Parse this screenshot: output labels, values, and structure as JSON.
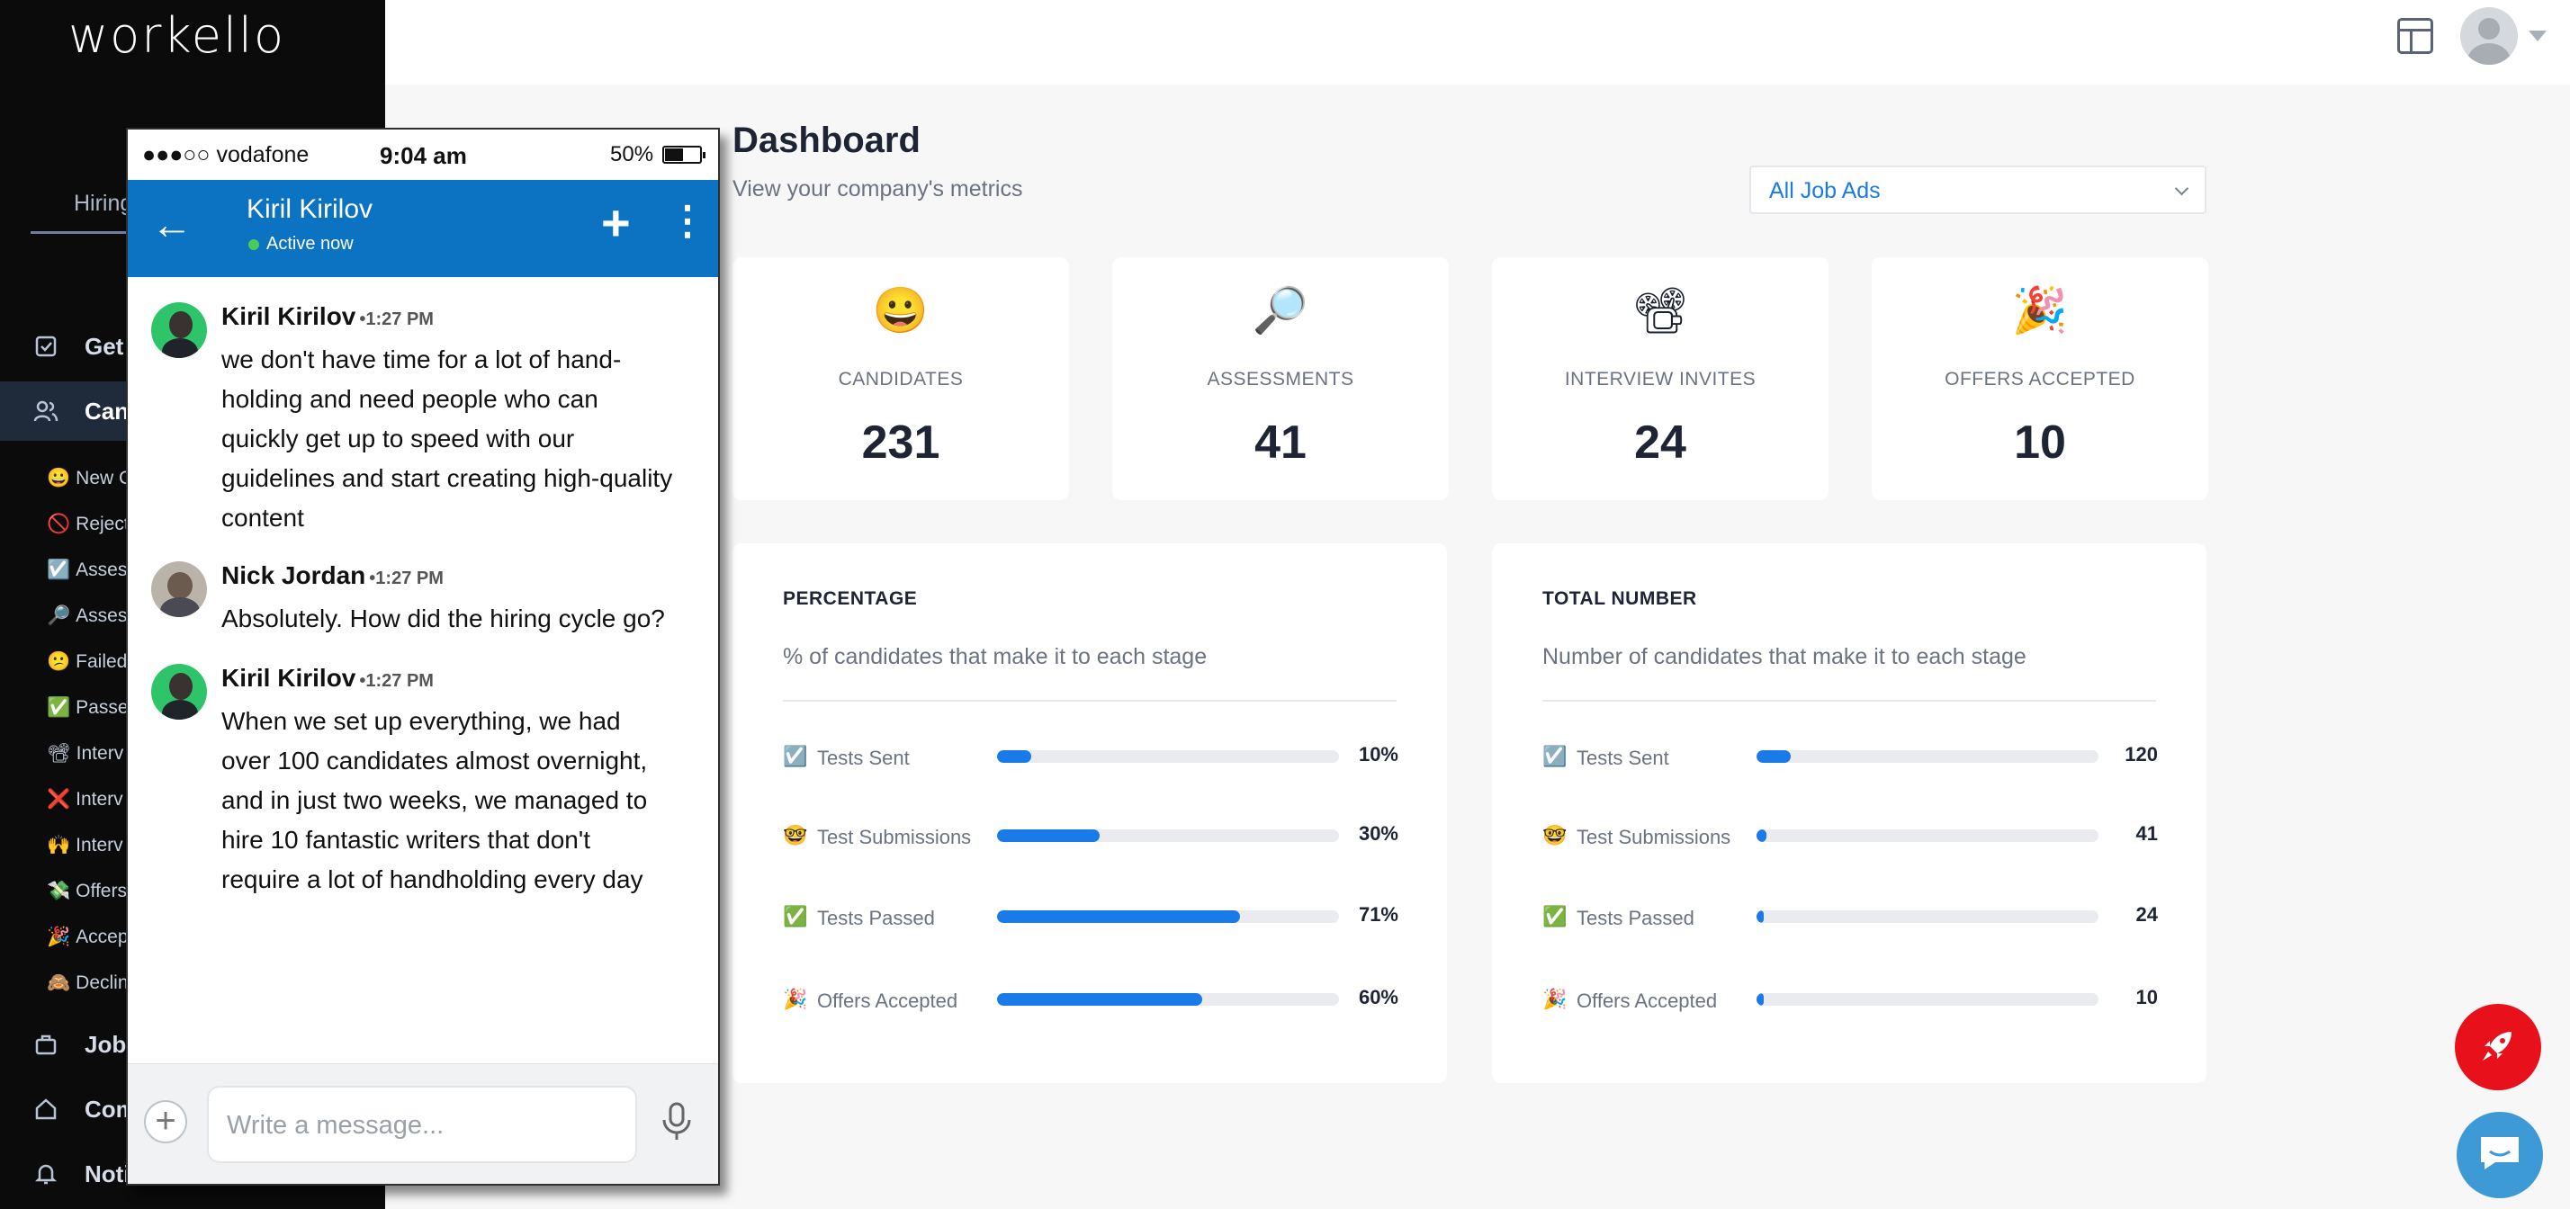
{
  "brand": {
    "logo": "workello"
  },
  "sidebar": {
    "tab_label": "Hiring",
    "items": [
      {
        "label": "Get",
        "icon": "checkbox-icon"
      },
      {
        "label": "Can",
        "icon": "users-icon"
      }
    ],
    "sub_items": [
      {
        "emoji": "😀",
        "label": "New C"
      },
      {
        "emoji": "🚫",
        "label": "Reject"
      },
      {
        "emoji": "☑️",
        "label": "Asses"
      },
      {
        "emoji": "🔎",
        "label": "Asses"
      },
      {
        "emoji": "😕",
        "label": "Failed"
      },
      {
        "emoji": "✅",
        "label": "Passe"
      },
      {
        "emoji": "📽",
        "label": "Interv"
      },
      {
        "emoji": "❌",
        "label": "Interv"
      },
      {
        "emoji": "🙌",
        "label": "Interv"
      },
      {
        "emoji": "💸",
        "label": "Offers"
      },
      {
        "emoji": "🎉",
        "label": "Accep"
      },
      {
        "emoji": "🙈",
        "label": "Declin"
      }
    ],
    "bottom_items": [
      {
        "label": "Job",
        "icon": "briefcase-icon"
      },
      {
        "label": "Com",
        "icon": "home-icon"
      },
      {
        "label": "Noti",
        "icon": "bell-icon"
      }
    ]
  },
  "dashboard": {
    "title": "Dashboard",
    "subtitle": "View your company's metrics",
    "filter": {
      "selected": "All Job Ads"
    },
    "stats": [
      {
        "emoji": "😀",
        "label": "CANDIDATES",
        "value": "231"
      },
      {
        "emoji": "🔎",
        "label": "ASSESSMENTS",
        "value": "41"
      },
      {
        "emoji": "📽",
        "label": "INTERVIEW INVITES",
        "value": "24"
      },
      {
        "emoji": "🎉",
        "label": "OFFERS ACCEPTED",
        "value": "10"
      }
    ],
    "percentage": {
      "title": "PERCENTAGE",
      "description": "% of candidates that make it to each stage",
      "rows": [
        {
          "emoji": "☑️",
          "label": "Tests Sent",
          "value": "10%",
          "fill": 0.1
        },
        {
          "emoji": "🤓",
          "label": "Test Submissions",
          "value": "30%",
          "fill": 0.3
        },
        {
          "emoji": "✅",
          "label": "Tests Passed",
          "value": "71%",
          "fill": 0.71
        },
        {
          "emoji": "🎉",
          "label": "Offers Accepted",
          "value": "60%",
          "fill": 0.6
        }
      ]
    },
    "total": {
      "title": "TOTAL NUMBER",
      "description": "Number of candidates that make it to each stage",
      "rows": [
        {
          "emoji": "☑️",
          "label": "Tests Sent",
          "value": "120",
          "fill": 0.1
        },
        {
          "emoji": "🤓",
          "label": "Test Submissions",
          "value": "41",
          "fill": 0.03
        },
        {
          "emoji": "✅",
          "label": "Tests Passed",
          "value": "24",
          "fill": 0.02
        },
        {
          "emoji": "🎉",
          "label": "Offers Accepted",
          "value": "10",
          "fill": 0.01
        }
      ]
    }
  },
  "phone": {
    "status": {
      "carrier": "●●●○○ vodafone",
      "time": "9:04 am",
      "battery": "50%"
    },
    "header": {
      "name": "Kiril Kirilov",
      "presence": "Active now"
    },
    "messages": [
      {
        "sender": "Kiril Kirilov",
        "time": "•1:27 PM",
        "avatar": "kiril",
        "lines": [
          "we don't have time for a lot of hand-",
          "holding and need people who can",
          "quickly get up to speed with our",
          "guidelines and start creating high-quality",
          "content"
        ]
      },
      {
        "sender": "Nick Jordan",
        "time": "•1:27 PM",
        "avatar": "nick",
        "lines": [
          "Absolutely. How did the hiring cycle go?"
        ]
      },
      {
        "sender": "Kiril Kirilov",
        "time": "•1:27 PM",
        "avatar": "kiril",
        "lines": [
          "When we set up everything, we had",
          "over 100 candidates almost overnight,",
          "and in just two weeks, we managed to",
          "hire 10 fantastic writers that don't",
          "require a lot of handholding every day"
        ]
      }
    ],
    "composer": {
      "placeholder": "Write a message..."
    }
  },
  "colors": {
    "accent": "#1a7be8",
    "phone_header": "#0c73c2",
    "rocket": "#e8101a",
    "chat": "#3d9ad6",
    "sidebar_bg": "#0b0b0b"
  }
}
